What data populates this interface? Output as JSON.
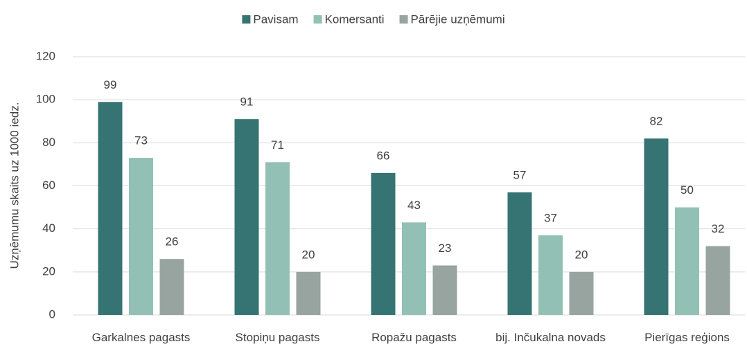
{
  "chart_data": {
    "type": "bar",
    "ylabel": "Uzņēmumu skaits uz 1000 iedz.",
    "categories": [
      "Garkalnes pagasts",
      "Stopiņu pagasts",
      "Ropažu pagasts",
      "bij. Inčukalna novads",
      "Pierīgas reģions"
    ],
    "series": [
      {
        "name": "Pavisam",
        "color": "#357472",
        "values": [
          99,
          91,
          66,
          57,
          82
        ]
      },
      {
        "name": "Komersanti",
        "color": "#93c0b5",
        "values": [
          73,
          71,
          43,
          37,
          50
        ]
      },
      {
        "name": "Pārējie uzņēmumi",
        "color": "#97a4a0",
        "values": [
          26,
          20,
          23,
          20,
          32
        ]
      }
    ],
    "ylim": [
      0,
      120
    ],
    "yticks": [
      0,
      20,
      40,
      60,
      80,
      100,
      120
    ],
    "grid": true,
    "legend": "top"
  }
}
